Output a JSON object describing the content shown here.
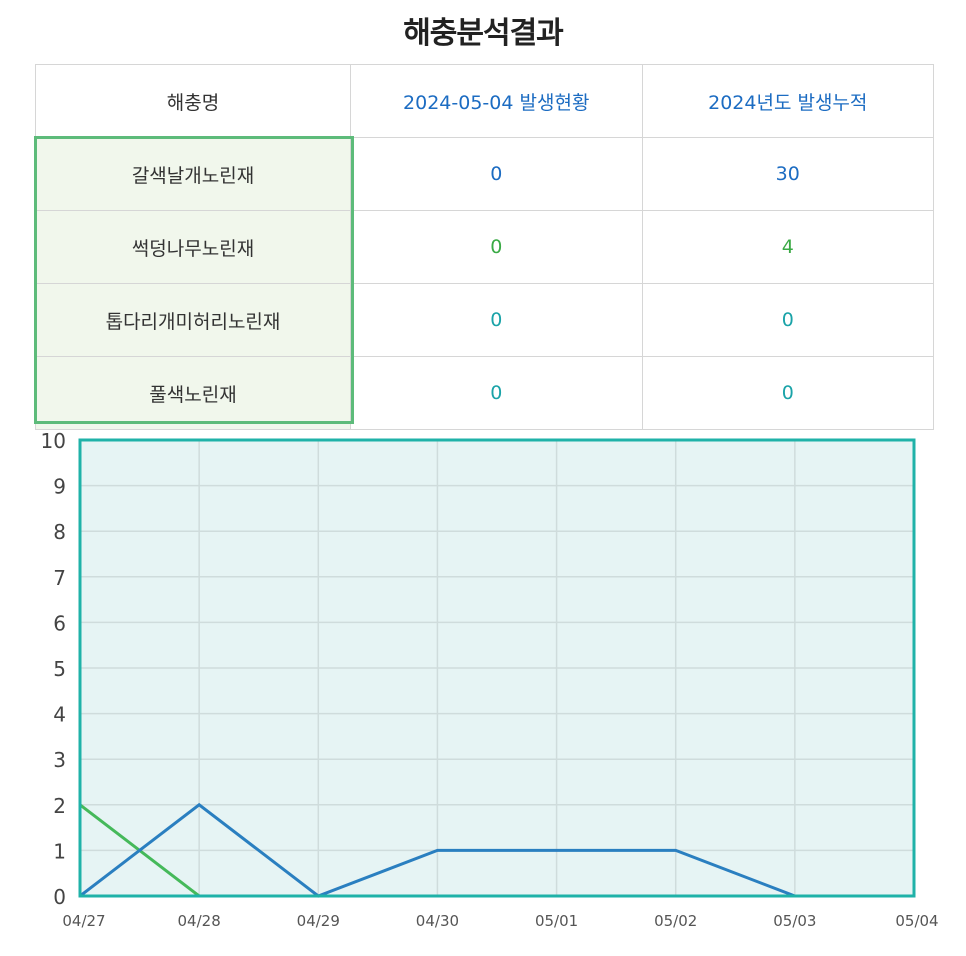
{
  "title": "해충분석결과",
  "table": {
    "headers": [
      "해충명",
      "2024-05-04 발생현황",
      "2024-05-04 발생현황"
    ],
    "columns": [
      "해충명",
      "2024-05-04 발생현황",
      "2024년도 발생누적"
    ],
    "rows": [
      {
        "name": "갈색날개노린재",
        "today": "0",
        "total": "30",
        "color": "#1c6cc2"
      },
      {
        "name": "썩덩나무노린재",
        "today": "0",
        "total": "4",
        "color": "#3aaa45"
      },
      {
        "name": "톱다리개미허리노린재",
        "today": "0",
        "total": "0",
        "color": "#1aa3a8"
      },
      {
        "name": "풀색노린재",
        "today": "0",
        "total": "0",
        "color": "#1aa3a8"
      }
    ]
  },
  "chart_data": {
    "type": "line",
    "categories": [
      "04/27",
      "04/28",
      "04/29",
      "04/30",
      "05/01",
      "05/02",
      "05/03",
      "05/04"
    ],
    "ylim": [
      0,
      10
    ],
    "yticks": [
      "0",
      "1",
      "2",
      "3",
      "4",
      "5",
      "6",
      "7",
      "8",
      "9",
      "10"
    ],
    "grid": true,
    "background": "#e6f4f4",
    "border_color": "#1fb2a8",
    "series": [
      {
        "values": [
          0,
          2,
          0,
          1,
          1,
          1,
          0,
          0
        ],
        "color": "#2a7fc0"
      },
      {
        "values": [
          2,
          0,
          0,
          0,
          0,
          0,
          0,
          0
        ],
        "color": "#45b95a"
      },
      {
        "values": [
          0,
          0,
          0,
          0,
          0,
          0,
          0,
          0
        ],
        "color": "#1aa3a8"
      },
      {
        "values": [
          0,
          0,
          0,
          0,
          0,
          0,
          0,
          0
        ],
        "color": "#e58a2a"
      }
    ]
  }
}
